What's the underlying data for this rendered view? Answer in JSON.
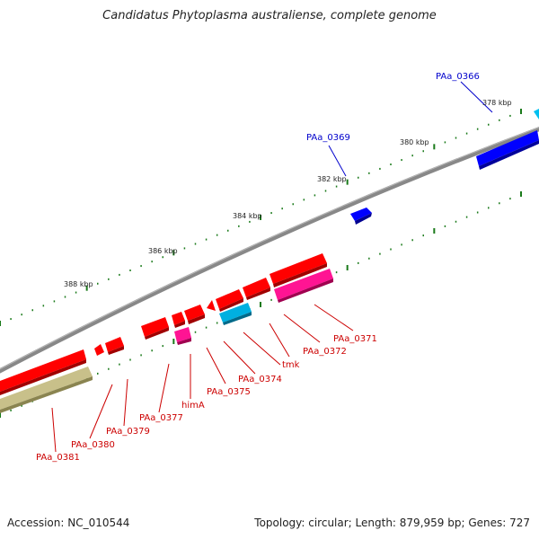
{
  "title": "Candidatus Phytoplasma australiense, complete genome",
  "footer": {
    "accession": "Accession: NC_010544",
    "summary": "Topology: circular; Length: 879,959 bp; Genes: 727"
  },
  "colors": {
    "forward_cds": "#ff0000",
    "reverse_cds": "#0000ff",
    "rna": "#00b0e0",
    "pseudo": "#ff1493",
    "other": "#c8c08a",
    "backbone": "#888888",
    "ticks": "#1a7a1a"
  },
  "scale_labels": [
    "378 kbp",
    "380 kbp",
    "382 kbp",
    "384 kbp",
    "386 kbp",
    "388 kbp"
  ],
  "gene_labels": [
    {
      "text": "PAa_0366",
      "color": "#0000cc"
    },
    {
      "text": "PAa_0369",
      "color": "#0000cc"
    },
    {
      "text": "PAa_0371",
      "color": "#cc0000"
    },
    {
      "text": "PAa_0372",
      "color": "#cc0000"
    },
    {
      "text": "tmk",
      "color": "#cc0000"
    },
    {
      "text": "PAa_0374",
      "color": "#cc0000"
    },
    {
      "text": "PAa_0375",
      "color": "#cc0000"
    },
    {
      "text": "himA",
      "color": "#cc0000"
    },
    {
      "text": "PAa_0377",
      "color": "#cc0000"
    },
    {
      "text": "PAa_0379",
      "color": "#cc0000"
    },
    {
      "text": "PAa_0380",
      "color": "#cc0000"
    },
    {
      "text": "PAa_0381",
      "color": "#cc0000"
    }
  ]
}
